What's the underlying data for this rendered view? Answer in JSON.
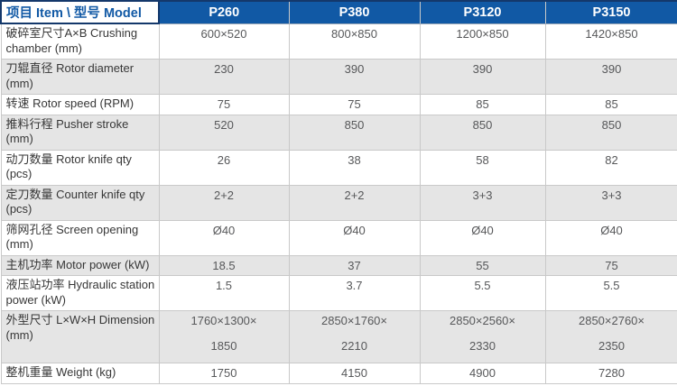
{
  "colors": {
    "header_bg": "#1159a5",
    "header_dark_border": "#14386b",
    "header_text": "#ffffff",
    "alt_row_bg": "#e5e5e5",
    "grid_border": "#c9c9c9",
    "value_text": "#57585a",
    "item_text": "#373737"
  },
  "table": {
    "corner_label": "项目 Item \\ 型号 Model",
    "models": [
      "P260",
      "P380",
      "P3120",
      "P3150"
    ],
    "rows": [
      {
        "item": "破碎室尺寸A×B Crushing chamber (mm)",
        "values": [
          "600×520",
          "800×850",
          "1200×850",
          "1420×850"
        ]
      },
      {
        "item": "刀辊直径 Rotor diameter (mm)",
        "values": [
          "230",
          "390",
          "390",
          "390"
        ]
      },
      {
        "item": "转速 Rotor speed (RPM)",
        "values": [
          "75",
          "75",
          "85",
          "85"
        ]
      },
      {
        "item": "推料行程 Pusher stroke (mm)",
        "values": [
          "520",
          "850",
          "850",
          "850"
        ]
      },
      {
        "item": "动刀数量 Rotor knife qty (pcs)",
        "values": [
          "26",
          "38",
          "58",
          "82"
        ]
      },
      {
        "item": "定刀数量 Counter knife qty (pcs)",
        "values": [
          "2+2",
          "2+2",
          "3+3",
          "3+3"
        ]
      },
      {
        "item": "筛网孔径 Screen opening (mm)",
        "values": [
          "Ø40",
          "Ø40",
          "Ø40",
          "Ø40"
        ]
      },
      {
        "item": "主机功率 Motor power (kW)",
        "values": [
          "18.5",
          "37",
          "55",
          "75"
        ]
      },
      {
        "item": "液压站功率 Hydraulic station power (kW)",
        "values": [
          "1.5",
          "3.7",
          "5.5",
          "5.5"
        ]
      },
      {
        "item": "外型尺寸 L×W×H Dimension (mm)",
        "values": [
          "1760×1300×\n1850",
          "2850×1760×\n2210",
          "2850×2560×\n2330",
          "2850×2760×\n2350"
        ],
        "tall": true
      },
      {
        "item": "整机重量 Weight (kg)",
        "values": [
          "1750",
          "4150",
          "4900",
          "7280"
        ]
      }
    ]
  }
}
